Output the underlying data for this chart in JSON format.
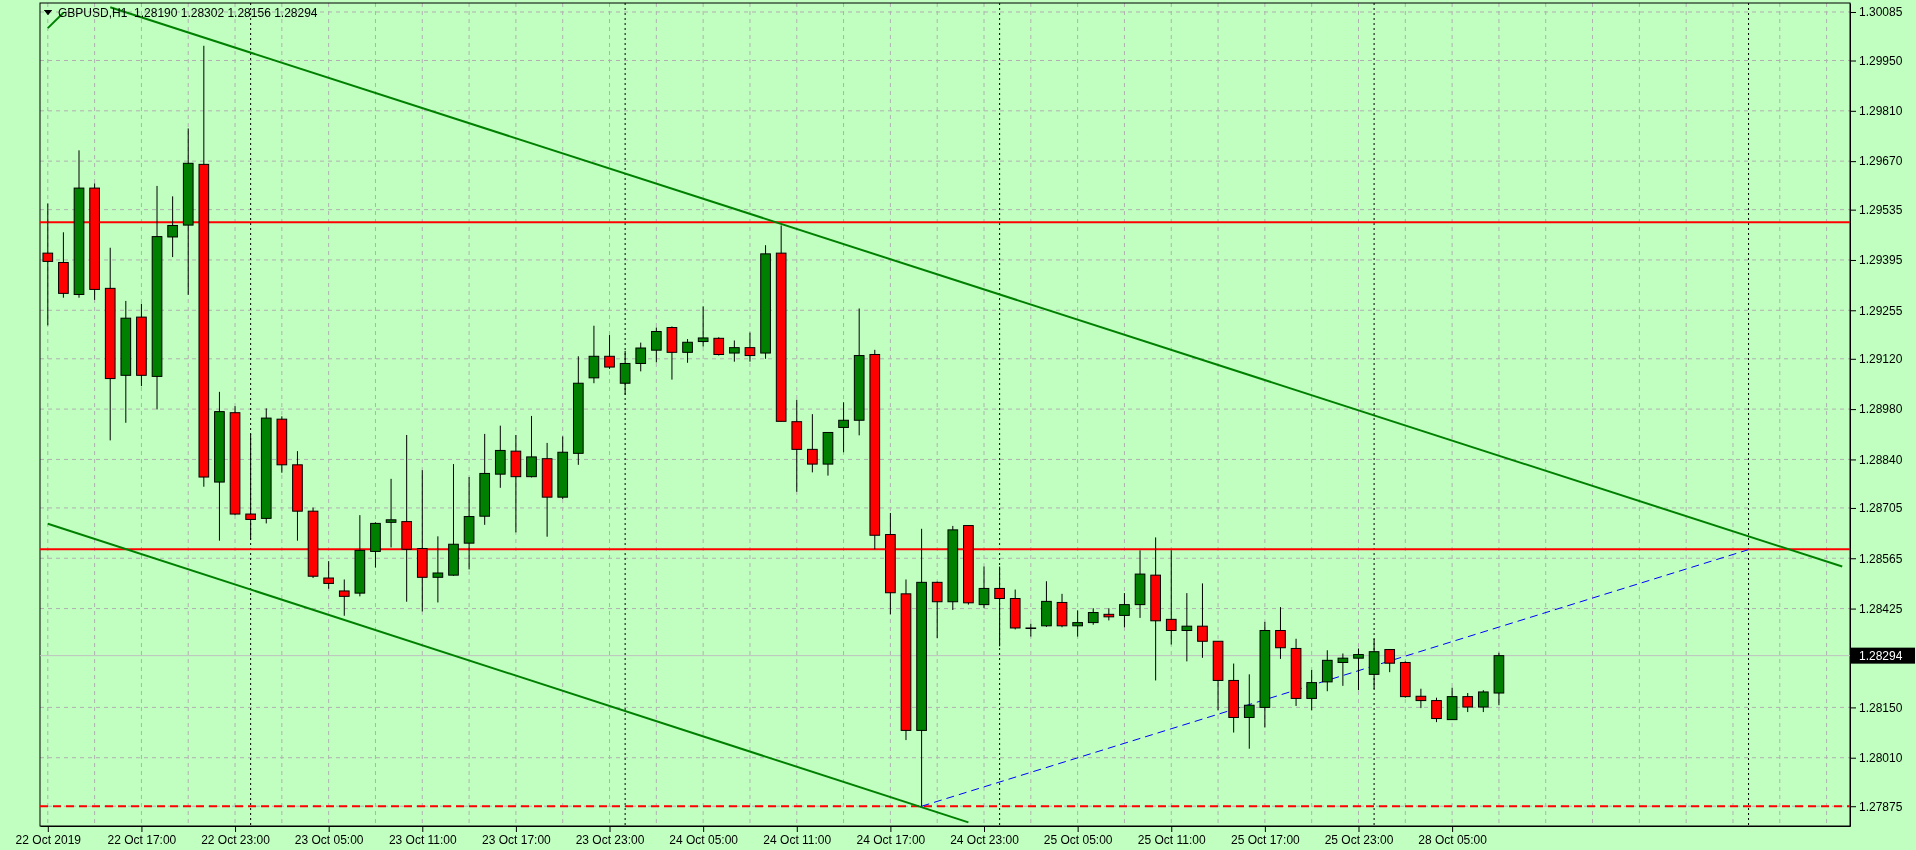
{
  "chart_data": {
    "type": "candlestick",
    "title": "GBPUSD,H1  1.28190 1.28302 1.28156 1.28294",
    "categories": [
      "22 Oct 2019",
      null,
      null,
      null,
      null,
      null,
      "22 Oct 17:00",
      null,
      null,
      null,
      null,
      null,
      "22 Oct 23:00",
      null,
      null,
      null,
      null,
      null,
      "23 Oct 05:00",
      null,
      null,
      null,
      null,
      null,
      "23 Oct 11:00",
      null,
      null,
      null,
      null,
      null,
      "23 Oct 17:00",
      null,
      null,
      null,
      null,
      null,
      "23 Oct 23:00",
      null,
      null,
      null,
      null,
      null,
      "24 Oct 05:00",
      null,
      null,
      null,
      null,
      null,
      "24 Oct 11:00",
      null,
      null,
      null,
      null,
      null,
      "24 Oct 17:00",
      null,
      null,
      null,
      null,
      null,
      "24 Oct 23:00",
      null,
      null,
      null,
      null,
      null,
      "25 Oct 05:00",
      null,
      null,
      null,
      null,
      null,
      "25 Oct 11:00",
      null,
      null,
      null,
      null,
      null,
      "25 Oct 17:00",
      null,
      null,
      null,
      null,
      null,
      "25 Oct 23:00",
      null,
      null,
      null,
      null,
      null,
      "28 Oct 05:00",
      null,
      null,
      null,
      null,
      null,
      null,
      null,
      null,
      null,
      null,
      null,
      null,
      null,
      null,
      null,
      null,
      null,
      null,
      null,
      null,
      null,
      null,
      null,
      null,
      null
    ],
    "ohlc": [
      [
        1.29414,
        1.29552,
        1.29213,
        1.29391
      ],
      [
        1.29388,
        1.29472,
        1.2929,
        1.29302
      ],
      [
        1.29299,
        1.297,
        1.2929,
        1.29595
      ],
      [
        1.29595,
        1.29608,
        1.29284,
        1.29313
      ],
      [
        1.29316,
        1.29429,
        1.28893,
        1.29065
      ],
      [
        1.29074,
        1.29281,
        1.28942,
        1.29233
      ],
      [
        1.29236,
        1.29273,
        1.29044,
        1.29074
      ],
      [
        1.29071,
        1.29601,
        1.28979,
        1.2946
      ],
      [
        1.29459,
        1.29572,
        1.29403,
        1.29491
      ],
      [
        1.29492,
        1.29761,
        1.29298,
        1.29664
      ],
      [
        1.29661,
        1.29991,
        1.28764,
        1.28791
      ],
      [
        1.28777,
        1.29028,
        1.28614,
        1.28973
      ],
      [
        1.2897,
        1.28988,
        1.28685,
        1.28688
      ],
      [
        1.28688,
        1.28911,
        1.28617,
        1.28673
      ],
      [
        1.28676,
        1.28982,
        1.28662,
        1.28955
      ],
      [
        1.28952,
        1.2896,
        1.28803,
        1.28825
      ],
      [
        1.28825,
        1.28863,
        1.28614,
        1.28696
      ],
      [
        1.28696,
        1.28706,
        1.2851,
        1.28515
      ],
      [
        1.2851,
        1.28557,
        1.2848,
        1.28495
      ],
      [
        1.28474,
        1.28506,
        1.28405,
        1.28459
      ],
      [
        1.28468,
        1.28685,
        1.28459,
        1.28587
      ],
      [
        1.28584,
        1.28665,
        1.28539,
        1.28662
      ],
      [
        1.28665,
        1.28786,
        1.28595,
        1.28672
      ],
      [
        1.28667,
        1.28908,
        1.28444,
        1.2859
      ],
      [
        1.28592,
        1.2881,
        1.28417,
        1.28512
      ],
      [
        1.28512,
        1.28626,
        1.28442,
        1.28524
      ],
      [
        1.28518,
        1.28827,
        1.28516,
        1.28604
      ],
      [
        1.28607,
        1.28791,
        1.28534,
        1.28681
      ],
      [
        1.28682,
        1.28911,
        1.28658,
        1.28801
      ],
      [
        1.28799,
        1.28934,
        1.28761,
        1.28865
      ],
      [
        1.28863,
        1.28908,
        1.28637,
        1.28792
      ],
      [
        1.28792,
        1.28961,
        1.2879,
        1.28847
      ],
      [
        1.28842,
        1.28886,
        1.28625,
        1.28735
      ],
      [
        1.28735,
        1.28904,
        1.2873,
        1.2886
      ],
      [
        1.28857,
        1.29127,
        1.28825,
        1.29052
      ],
      [
        1.29067,
        1.29212,
        1.29052,
        1.29127
      ],
      [
        1.29127,
        1.29186,
        1.29092,
        1.29097
      ],
      [
        1.29052,
        1.29142,
        1.2902,
        1.29107
      ],
      [
        1.29107,
        1.29165,
        1.29085,
        1.2915
      ],
      [
        1.29144,
        1.29207,
        1.2911,
        1.29196
      ],
      [
        1.29207,
        1.2921,
        1.29062,
        1.29138
      ],
      [
        1.29138,
        1.29175,
        1.29109,
        1.29166
      ],
      [
        1.29168,
        1.29266,
        1.29154,
        1.29178
      ],
      [
        1.29177,
        1.2918,
        1.29129,
        1.29132
      ],
      [
        1.29136,
        1.29171,
        1.29112,
        1.29151
      ],
      [
        1.29151,
        1.29193,
        1.29112,
        1.29129
      ],
      [
        1.29136,
        1.29436,
        1.2912,
        1.29412
      ],
      [
        1.29414,
        1.29491,
        1.28946,
        1.28946
      ],
      [
        1.28945,
        1.29006,
        1.2875,
        1.28868
      ],
      [
        1.28868,
        1.28966,
        1.28804,
        1.28827
      ],
      [
        1.28827,
        1.28916,
        1.28795,
        1.28915
      ],
      [
        1.28929,
        1.28999,
        1.2886,
        1.28949
      ],
      [
        1.28949,
        1.2926,
        1.28907,
        1.29129
      ],
      [
        1.29132,
        1.29145,
        1.2859,
        1.28629
      ],
      [
        1.28631,
        1.28691,
        1.28409,
        1.28469
      ],
      [
        1.28466,
        1.28506,
        1.28059,
        1.28086
      ],
      [
        1.28086,
        1.28647,
        1.27875,
        1.28498
      ],
      [
        1.28498,
        1.285,
        1.28343,
        1.28444
      ],
      [
        1.28444,
        1.28655,
        1.28421,
        1.28644
      ],
      [
        1.28656,
        1.28656,
        1.28436,
        1.28441
      ],
      [
        1.28436,
        1.28542,
        1.28426,
        1.28481
      ],
      [
        1.28481,
        1.28542,
        1.2832,
        1.28453
      ],
      [
        1.28453,
        1.28478,
        1.28367,
        1.28371
      ],
      [
        1.28371,
        1.28383,
        1.28347,
        1.28371
      ],
      [
        1.28377,
        1.28501,
        1.28374,
        1.28445
      ],
      [
        1.28442,
        1.28466,
        1.28373,
        1.28377
      ],
      [
        1.28377,
        1.2842,
        1.28347,
        1.28386
      ],
      [
        1.28386,
        1.28426,
        1.2838,
        1.28414
      ],
      [
        1.28409,
        1.28426,
        1.28392,
        1.28402
      ],
      [
        1.28406,
        1.28468,
        1.28373,
        1.28436
      ],
      [
        1.28436,
        1.28587,
        1.28399,
        1.28521
      ],
      [
        1.28518,
        1.28623,
        1.28225,
        1.28391
      ],
      [
        1.28395,
        1.28587,
        1.28325,
        1.28364
      ],
      [
        1.28364,
        1.28468,
        1.28278,
        1.28376
      ],
      [
        1.28376,
        1.28495,
        1.28288,
        1.28334
      ],
      [
        1.28334,
        1.28334,
        1.28142,
        1.28225
      ],
      [
        1.28225,
        1.28272,
        1.2808,
        1.28122
      ],
      [
        1.28122,
        1.28242,
        1.28035,
        1.28156
      ],
      [
        1.2815,
        1.28388,
        1.28094,
        1.28364
      ],
      [
        1.28364,
        1.28429,
        1.28285,
        1.28316
      ],
      [
        1.28314,
        1.28341,
        1.28154,
        1.28175
      ],
      [
        1.28175,
        1.28254,
        1.28142,
        1.28219
      ],
      [
        1.28221,
        1.28309,
        1.28195,
        1.28281
      ],
      [
        1.28275,
        1.283,
        1.2821,
        1.28287
      ],
      [
        1.28287,
        1.28314,
        1.28198,
        1.28297
      ],
      [
        1.28242,
        1.28341,
        1.28201,
        1.28305
      ],
      [
        1.28311,
        1.28312,
        1.28248,
        1.28273
      ],
      [
        1.28275,
        1.28278,
        1.28177,
        1.2818
      ],
      [
        1.28181,
        1.28202,
        1.28148,
        1.28169
      ],
      [
        1.28169,
        1.28177,
        1.28109,
        1.28119
      ],
      [
        1.28116,
        1.28205,
        1.28115,
        1.2818
      ],
      [
        1.2818,
        1.2819,
        1.28137,
        1.28151
      ],
      [
        1.28151,
        1.28198,
        1.28137,
        1.28193
      ],
      [
        1.2819,
        1.28302,
        1.28156,
        1.28294
      ],
      null,
      null,
      null,
      null,
      null,
      null,
      null,
      null,
      null,
      null,
      null,
      null,
      null,
      null,
      null,
      null,
      null,
      null,
      null,
      null,
      null,
      null
    ],
    "colors": [
      "#ff0000",
      "#ff0000",
      "#008000",
      "#ff0000",
      "#ff0000",
      "#008000",
      "#ff0000",
      "#008000",
      "#008000",
      "#008000",
      "#ff0000",
      "#008000",
      "#ff0000",
      "#ff0000",
      "#008000",
      "#ff0000",
      "#ff0000",
      "#ff0000",
      "#ff0000",
      "#ff0000",
      "#008000",
      "#008000",
      "#008000",
      "#ff0000",
      "#ff0000",
      "#008000",
      "#008000",
      "#008000",
      "#008000",
      "#008000",
      "#ff0000",
      "#008000",
      "#ff0000",
      "#008000",
      "#008000",
      "#008000",
      "#ff0000",
      "#008000",
      "#008000",
      "#008000",
      "#ff0000",
      "#008000",
      "#008000",
      "#ff0000",
      "#008000",
      "#ff0000",
      "#008000",
      "#ff0000",
      "#ff0000",
      "#ff0000",
      "#008000",
      "#008000",
      "#008000",
      "#ff0000",
      "#ff0000",
      "#ff0000",
      "#008000",
      "#ff0000",
      "#008000",
      "#ff0000",
      "#008000",
      "#ff0000",
      "#ff0000",
      "#000000",
      "#008000",
      "#ff0000",
      "#008000",
      "#008000",
      "#ff0000",
      "#008000",
      "#008000",
      "#ff0000",
      "#ff0000",
      "#008000",
      "#ff0000",
      "#ff0000",
      "#ff0000",
      "#008000",
      "#008000",
      "#ff0000",
      "#ff0000",
      "#008000",
      "#008000",
      "#008000",
      "#008000",
      "#008000",
      "#ff0000",
      "#ff0000",
      "#ff0000",
      "#ff0000",
      "#008000",
      "#ff0000",
      "#008000",
      "#008000",
      null,
      null,
      null,
      null,
      null,
      null,
      null,
      null,
      null,
      null,
      null,
      null,
      null,
      null,
      null,
      null,
      null,
      null,
      null,
      null,
      null,
      null
    ],
    "series": [
      {
        "type": "line",
        "color": "#008000",
        "values": [
          null,
          null,
          null,
          null,
          1.30098,
          null,
          null,
          null,
          null,
          null,
          null,
          null,
          null,
          null,
          null,
          null,
          null,
          null,
          null,
          null,
          null,
          null,
          null,
          null,
          null,
          null,
          null,
          null,
          null,
          null,
          null,
          null,
          null,
          null,
          null,
          null,
          null,
          null,
          null,
          null,
          null,
          null,
          null,
          null,
          null,
          null,
          null,
          null,
          null,
          null,
          null,
          null,
          null,
          null,
          null,
          null,
          null,
          null,
          null,
          null,
          null,
          null,
          null,
          null,
          null,
          null,
          null,
          null,
          null,
          null,
          null,
          null,
          null,
          null,
          null,
          null,
          null,
          null,
          null,
          null,
          null,
          null,
          null,
          null,
          null,
          null,
          null,
          null,
          null,
          null,
          null,
          null,
          null,
          null,
          null,
          null,
          null,
          null,
          null,
          null,
          null,
          null,
          null,
          null,
          null,
          null,
          null,
          null,
          null,
          null,
          null,
          null,
          null,
          null,
          null,
          1.28542
        ]
      },
      {
        "type": "line",
        "color": "#008000",
        "values": [
          1.28661,
          null,
          null,
          null,
          null,
          null,
          null,
          null,
          null,
          null,
          null,
          null,
          null,
          null,
          null,
          null,
          null,
          null,
          null,
          null,
          null,
          null,
          null,
          null,
          null,
          null,
          null,
          null,
          null,
          null,
          null,
          null,
          null,
          null,
          null,
          null,
          null,
          null,
          null,
          null,
          null,
          null,
          null,
          null,
          null,
          null,
          null,
          null,
          null,
          null,
          null,
          null,
          null,
          null,
          null,
          null,
          null,
          null,
          null,
          1.2783,
          null,
          null,
          null,
          null,
          null,
          null,
          null,
          null,
          null,
          null,
          null,
          null,
          null,
          null,
          null,
          null,
          null,
          null,
          null,
          null,
          null,
          null,
          null,
          null,
          null,
          null,
          null,
          null,
          null,
          null,
          null,
          null,
          null,
          null,
          null,
          null,
          null,
          null,
          null,
          null,
          null,
          null,
          null,
          null,
          null,
          null,
          null,
          null,
          null,
          null,
          null,
          null,
          null,
          null,
          null,
          null
        ]
      },
      {
        "type": "line",
        "color": "#008000",
        "values": [
          1.3004,
          1.30083,
          null,
          null,
          null,
          null,
          null,
          null,
          null,
          null,
          null,
          null,
          null,
          null,
          null,
          null,
          null,
          null,
          null,
          null,
          null,
          null,
          null,
          null,
          null,
          null,
          null,
          null,
          null,
          null,
          null,
          null,
          null,
          null,
          null,
          null,
          null,
          null,
          null,
          null,
          null,
          null,
          null,
          null,
          null,
          null,
          null,
          null,
          null,
          null,
          null,
          null,
          null,
          null,
          null,
          null,
          null,
          null,
          null,
          null,
          null,
          null,
          null,
          null,
          null,
          null,
          null,
          null,
          null,
          null,
          null,
          null,
          null,
          null,
          null,
          null,
          null,
          null,
          null,
          null,
          null,
          null,
          null,
          null,
          null,
          null,
          null,
          null,
          null,
          null,
          null,
          null,
          null,
          null,
          null,
          null,
          null,
          null,
          null,
          null,
          null,
          null,
          null,
          null,
          null,
          null,
          null,
          null,
          null,
          null,
          null,
          null,
          null,
          null,
          null,
          null
        ]
      },
      {
        "type": "line",
        "color": "#0000ff",
        "line_style": "dashed",
        "values": [
          null,
          null,
          null,
          null,
          null,
          null,
          null,
          null,
          null,
          null,
          null,
          null,
          null,
          null,
          null,
          null,
          null,
          null,
          null,
          null,
          null,
          null,
          null,
          null,
          null,
          null,
          null,
          null,
          null,
          null,
          null,
          null,
          null,
          null,
          null,
          null,
          null,
          null,
          null,
          null,
          null,
          null,
          null,
          null,
          null,
          null,
          null,
          null,
          null,
          null,
          null,
          null,
          null,
          null,
          null,
          null,
          1.27875,
          null,
          null,
          null,
          null,
          null,
          null,
          null,
          null,
          null,
          null,
          null,
          null,
          null,
          null,
          null,
          null,
          null,
          null,
          null,
          null,
          null,
          null,
          null,
          null,
          null,
          null,
          null,
          null,
          null,
          null,
          null,
          null,
          null,
          null,
          null,
          null,
          null,
          null,
          null,
          null,
          null,
          null,
          null,
          null,
          null,
          null,
          null,
          null,
          null,
          null,
          null,
          null,
          1.28589,
          null,
          null,
          null,
          null,
          null,
          null
        ]
      }
    ],
    "ylim": [
      1.2782,
      1.3011
    ],
    "yticks": [
      {
        "value": 1.27875,
        "label": "1.27875"
      },
      {
        "value": 1.2801,
        "label": "1.28010"
      },
      {
        "value": 1.2815,
        "label": "1.28150"
      },
      {
        "value": 1.28425,
        "label": "1.28425"
      },
      {
        "value": 1.28565,
        "label": "1.28565"
      },
      {
        "value": 1.28705,
        "label": "1.28705"
      },
      {
        "value": 1.2884,
        "label": "1.28840"
      },
      {
        "value": 1.2898,
        "label": "1.28980"
      },
      {
        "value": 1.2912,
        "label": "1.29120"
      },
      {
        "value": 1.29255,
        "label": "1.29255"
      },
      {
        "value": 1.29395,
        "label": "1.29395"
      },
      {
        "value": 1.29535,
        "label": "1.29535"
      },
      {
        "value": 1.2967,
        "label": "1.29670"
      },
      {
        "value": 1.2981,
        "label": "1.29810"
      },
      {
        "value": 1.2995,
        "label": "1.29950"
      },
      {
        "value": 1.30085,
        "label": "1.30085"
      }
    ],
    "ref_lines": [
      {
        "axis": "y",
        "value": 1.295,
        "color": "#ff0000"
      },
      {
        "axis": "y",
        "value": 1.2859,
        "color": "#ff0000"
      },
      {
        "axis": "y",
        "value": 1.27875,
        "color": "#ff0000",
        "line_style": "dashed"
      },
      {
        "axis": "y",
        "value": 1.28294,
        "label": "1.28294",
        "color": "#c0c0c0"
      }
    ],
    "grid": true
  }
}
